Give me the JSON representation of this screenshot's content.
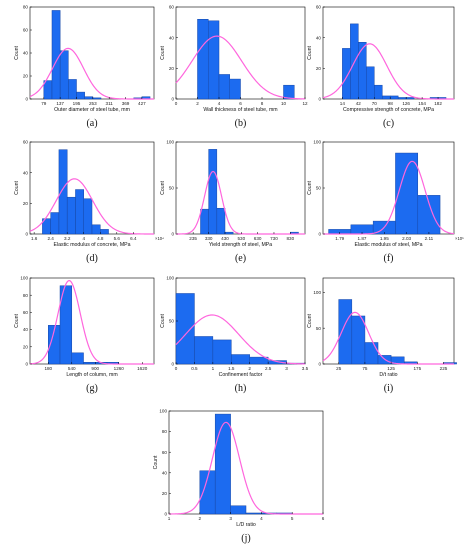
{
  "colors": {
    "bar_fill": "#1c6bf0",
    "bar_edge": "#1747a6",
    "curve": "#ff66dd",
    "axis": "#000000"
  },
  "chart_data": [
    {
      "id": "a",
      "type": "bar",
      "caption": "(a)",
      "xlabel": "Outer diameter of steel tube, mm",
      "ylabel": "Count",
      "xlim": [
        30,
        470
      ],
      "ylim": [
        0,
        80
      ],
      "xticks": [
        79,
        137,
        195,
        253,
        311,
        369,
        427
      ],
      "yticks": [
        0,
        20,
        40,
        60,
        80
      ],
      "bin_edges": [
        79,
        108,
        137,
        166,
        195,
        224,
        253,
        282,
        311,
        340,
        369,
        398,
        427,
        456
      ],
      "values": [
        16,
        77,
        42,
        17,
        6,
        2,
        1,
        0,
        0,
        0,
        0,
        1,
        2
      ],
      "fit_curve": {
        "mean": 165,
        "sd": 55,
        "peak": 44
      }
    },
    {
      "id": "b",
      "type": "bar",
      "caption": "(b)",
      "xlabel": "Wall thickness of steel tube, mm",
      "ylabel": "Count",
      "xlim": [
        0,
        12
      ],
      "ylim": [
        0,
        60
      ],
      "xticks": [
        0,
        2,
        4,
        6,
        8,
        10,
        12
      ],
      "yticks": [
        0,
        20,
        40,
        60
      ],
      "bin_edges": [
        2,
        3,
        4,
        5,
        6,
        7,
        8,
        9,
        10,
        11
      ],
      "values": [
        52,
        51,
        16,
        13,
        0,
        0,
        0,
        0,
        9
      ],
      "fit_curve": {
        "mean": 3.8,
        "sd": 2.3,
        "peak": 41
      }
    },
    {
      "id": "c",
      "type": "bar",
      "caption": "(c)",
      "xlabel": "Compressive strength of concrete, MPa",
      "ylabel": "Count",
      "xlim": [
        -20,
        210
      ],
      "ylim": [
        0,
        60
      ],
      "xticks": [
        14,
        42,
        70,
        98,
        126,
        154,
        182
      ],
      "yticks": [
        0,
        20,
        40,
        60
      ],
      "bin_edges": [
        14,
        28,
        42,
        56,
        70,
        84,
        98,
        112,
        126,
        140,
        154,
        168,
        182,
        196
      ],
      "values": [
        33,
        49,
        37,
        21,
        9,
        2,
        2,
        1,
        1,
        0,
        0,
        1,
        1
      ],
      "fit_curve": {
        "mean": 62,
        "sd": 30,
        "peak": 36
      }
    },
    {
      "id": "d",
      "type": "bar",
      "caption": "(d)",
      "xlabel": "Elastic modulus of concrete, MPa",
      "ylabel": "Count",
      "multiplier": "×10⁴",
      "xlim": [
        1.4,
        7.4
      ],
      "ylim": [
        0,
        60
      ],
      "xticks": [
        1.6,
        2.4,
        3.2,
        4,
        4.8,
        5.6,
        6.4
      ],
      "xtick_labels": [
        "1.6",
        "2.4",
        "3.2",
        "4",
        "4.8",
        "5.6",
        "6.4"
      ],
      "yticks": [
        0,
        20,
        40,
        60
      ],
      "bin_edges": [
        2.0,
        2.4,
        2.8,
        3.2,
        3.6,
        4.0,
        4.4,
        4.8,
        5.2
      ],
      "values": [
        10,
        14,
        55,
        24,
        29,
        23,
        6,
        3
      ],
      "fit_curve": {
        "mean": 3.55,
        "sd": 0.88,
        "peak": 36
      }
    },
    {
      "id": "e",
      "type": "bar",
      "caption": "(e)",
      "xlabel": "Yield strength of steel, MPa",
      "ylabel": "Count",
      "xlim": [
        130,
        920
      ],
      "ylim": [
        0,
        100
      ],
      "xticks": [
        235,
        330,
        430,
        530,
        630,
        730,
        830
      ],
      "xtick_labels": [
        "235",
        "330",
        "430",
        "530",
        "630",
        "730",
        "830"
      ],
      "yticks": [
        0,
        50,
        100
      ],
      "bin_edges": [
        280,
        330,
        380,
        430,
        480,
        530,
        580,
        630,
        680,
        730,
        780,
        830,
        880
      ],
      "values": [
        27,
        92,
        28,
        2,
        0,
        0,
        0,
        0,
        0,
        0,
        0,
        2
      ],
      "fit_curve": {
        "mean": 357,
        "sd": 52,
        "peak": 68
      }
    },
    {
      "id": "f",
      "type": "bar",
      "caption": "(f)",
      "xlabel": "Elastic modulus of steel, MPa",
      "ylabel": "Count",
      "multiplier": "×10⁵",
      "xlim": [
        1.73,
        2.2
      ],
      "ylim": [
        0,
        100
      ],
      "xticks": [
        1.79,
        1.87,
        1.95,
        2.03,
        2.11
      ],
      "yticks": [
        0,
        50,
        100
      ],
      "bin_edges": [
        1.75,
        1.83,
        1.91,
        1.99,
        2.07,
        2.15
      ],
      "values": [
        5,
        10,
        14,
        88,
        42
      ],
      "fit_curve": {
        "mean": 2.05,
        "sd": 0.046,
        "peak": 79
      }
    },
    {
      "id": "g",
      "type": "bar",
      "caption": "(g)",
      "xlabel": "Length of column, mm",
      "ylabel": "Count",
      "xlim": [
        -100,
        1800
      ],
      "ylim": [
        0,
        100
      ],
      "xticks": [
        180,
        540,
        900,
        1260,
        1620
      ],
      "yticks": [
        0,
        20,
        40,
        60,
        80,
        100
      ],
      "bin_edges": [
        180,
        360,
        540,
        720,
        900,
        1080,
        1260,
        1440
      ],
      "values": [
        45,
        91,
        13,
        2,
        2,
        2,
        0
      ],
      "fit_curve": {
        "mean": 500,
        "sd": 170,
        "peak": 97
      }
    },
    {
      "id": "h",
      "type": "bar",
      "caption": "(h)",
      "xlabel": "Confinement factor",
      "ylabel": "Count",
      "xlim": [
        0,
        3.5
      ],
      "ylim": [
        0,
        100
      ],
      "xticks": [
        0,
        0.5,
        1,
        1.5,
        2,
        2.5,
        3,
        3.5
      ],
      "yticks": [
        0,
        50,
        100
      ],
      "bin_edges": [
        0,
        0.5,
        1.0,
        1.5,
        2.0,
        2.5,
        3.0,
        3.5
      ],
      "values": [
        82,
        32,
        28,
        11,
        8,
        4,
        1
      ],
      "fit_curve": {
        "mean": 0.98,
        "sd": 0.72,
        "peak": 57
      }
    },
    {
      "id": "i",
      "type": "bar",
      "caption": "(i)",
      "xlabel": "D/t ratio",
      "ylabel": "Count",
      "xlim": [
        -5,
        245
      ],
      "ylim": [
        0,
        120
      ],
      "xticks": [
        25,
        75,
        125,
        175,
        225
      ],
      "yticks": [
        0,
        50,
        100
      ],
      "bin_edges": [
        25,
        50,
        75,
        100,
        125,
        150,
        175,
        200,
        225,
        250
      ],
      "values": [
        90,
        67,
        30,
        12,
        10,
        3,
        0,
        0,
        2
      ],
      "fit_curve": {
        "mean": 56,
        "sd": 26,
        "peak": 72
      }
    },
    {
      "id": "j",
      "type": "bar",
      "caption": "(j)",
      "xlabel": "L/D ratio",
      "ylabel": "Count",
      "xlim": [
        1,
        6
      ],
      "ylim": [
        0,
        100
      ],
      "xticks": [
        1,
        2,
        3,
        4,
        5,
        6
      ],
      "yticks": [
        0,
        20,
        40,
        60,
        80,
        100
      ],
      "bin_edges": [
        2.0,
        2.5,
        3.0,
        3.5,
        4.0,
        4.5,
        5.0
      ],
      "values": [
        42,
        97,
        8,
        1,
        1,
        1
      ],
      "fit_curve": {
        "mean": 2.85,
        "sd": 0.44,
        "peak": 89
      }
    }
  ]
}
